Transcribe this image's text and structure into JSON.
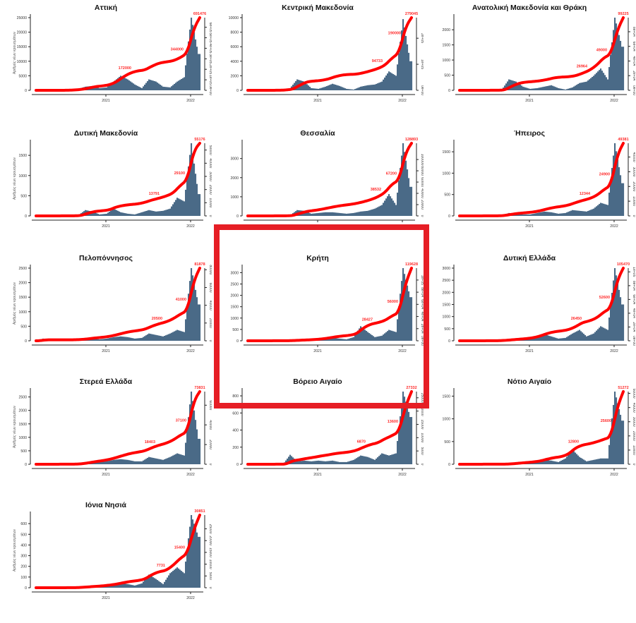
{
  "highlight_color": "#e61e25",
  "bar_color": "#4a6a87",
  "line_color": "#ff0000",
  "ylabel": "Αριθμός νέων κρουσμάτων",
  "chart_data": [
    {
      "type": "bar+line",
      "title": "Αττική",
      "x_ticks": [
        "2021",
        "2022"
      ],
      "left_ticks": [
        0,
        5000,
        10000,
        15000,
        20000,
        25000
      ],
      "left_max": 25000,
      "right_ticks": [
        "0e+00",
        "1e+05",
        "2e+05",
        "3e+05",
        "4e+05",
        "5e+05",
        "6e+05"
      ],
      "right_step": 100000,
      "final": 691476,
      "labels": [
        "172000",
        "344000",
        "691476"
      ],
      "monthly": [
        0,
        0,
        0,
        0,
        0,
        0.01,
        0.02,
        0.05,
        0.06,
        0.03,
        0.04,
        0.12,
        0.2,
        0.15,
        0.08,
        0.03,
        0.15,
        0.12,
        0.05,
        0.04,
        0.12,
        0.18,
        1,
        0.5
      ]
    },
    {
      "type": "bar+line",
      "title": "Κεντρική Μακεδονία",
      "x_ticks": [
        "2021",
        "2022"
      ],
      "left_ticks": [
        0,
        2000,
        4000,
        6000,
        8000,
        10000
      ],
      "left_max": 10000,
      "right_ticks": [
        "0e+00",
        "1e+05",
        "2e+05",
        "3e+05"
      ],
      "right_step": 100000,
      "final": 279045,
      "labels": [
        "94733",
        "190000",
        "279045"
      ],
      "monthly": [
        0,
        0,
        0,
        0,
        0,
        0.01,
        0.03,
        0.15,
        0.12,
        0.03,
        0.02,
        0.05,
        0.09,
        0.06,
        0.02,
        0.01,
        0.05,
        0.07,
        0.08,
        0.12,
        0.26,
        0.2,
        0.98,
        0.4
      ]
    },
    {
      "type": "bar+line",
      "title": "Ανατολική Μακεδονία και Θράκη",
      "x_ticks": [
        "2021",
        "2022"
      ],
      "left_ticks": [
        0,
        500,
        1000,
        1500,
        2000
      ],
      "left_max": 2400,
      "right_ticks": [
        "0e+00",
        "2e+04",
        "4e+04",
        "6e+04",
        "8e+04",
        "1e+05"
      ],
      "right_step": 20000,
      "final": 99225,
      "labels": [
        "26964",
        "49000",
        "99225"
      ],
      "monthly": [
        0,
        0,
        0,
        0,
        0,
        0,
        0.01,
        0.15,
        0.12,
        0.05,
        0.02,
        0.03,
        0.05,
        0.07,
        0.03,
        0.01,
        0.04,
        0.1,
        0.12,
        0.2,
        0.3,
        0.15,
        1,
        0.6
      ]
    },
    {
      "type": "bar+line",
      "title": "Δυτική Μακεδονία",
      "x_ticks": [
        "2021",
        "2022"
      ],
      "left_ticks": [
        0,
        500,
        1000,
        1500
      ],
      "left_max": 1800,
      "right_ticks": [
        "0",
        "10000",
        "20000",
        "30000",
        "40000",
        "50000"
      ],
      "right_step": 10000,
      "final": 55176,
      "labels": [
        "13791",
        "29100",
        "55176"
      ],
      "monthly": [
        0,
        0,
        0,
        0,
        0,
        0,
        0.01,
        0.08,
        0.06,
        0.02,
        0.03,
        0.1,
        0.05,
        0.03,
        0.02,
        0.05,
        0.08,
        0.06,
        0.07,
        0.1,
        0.25,
        0.2,
        1,
        0.3
      ]
    },
    {
      "type": "bar+line",
      "title": "Θεσσαλία",
      "x_ticks": [
        "2021",
        "2022"
      ],
      "left_ticks": [
        0,
        1000,
        2000,
        3000
      ],
      "left_max": 3800,
      "right_ticks": [
        "0",
        "20000",
        "40000",
        "60000",
        "80000",
        "100000"
      ],
      "right_step": 20000,
      "final": 128893,
      "labels": [
        "38532",
        "67200",
        "128893"
      ],
      "monthly": [
        0,
        0,
        0,
        0,
        0,
        0,
        0.01,
        0.08,
        0.07,
        0.03,
        0.04,
        0.05,
        0.05,
        0.04,
        0.03,
        0.04,
        0.06,
        0.07,
        0.1,
        0.15,
        0.3,
        0.15,
        1,
        0.4
      ]
    },
    {
      "type": "bar+line",
      "title": "Ήπειρος",
      "x_ticks": [
        "2021",
        "2022"
      ],
      "left_ticks": [
        0,
        500,
        1000,
        1500
      ],
      "left_max": 1700,
      "right_ticks": [
        "0",
        "10000",
        "20000",
        "30000",
        "40000",
        "50000"
      ],
      "right_step": 10000,
      "final": 49381,
      "labels": [
        "12344",
        "24900",
        "49381"
      ],
      "monthly": [
        0,
        0,
        0,
        0,
        0,
        0,
        0.01,
        0.04,
        0.03,
        0.02,
        0.02,
        0.04,
        0.06,
        0.05,
        0.03,
        0.04,
        0.08,
        0.07,
        0.06,
        0.1,
        0.18,
        0.15,
        1,
        0.45
      ]
    },
    {
      "type": "bar+line",
      "title": "Πελοπόννησος",
      "x_ticks": [
        "2021",
        "2022"
      ],
      "left_ticks": [
        0,
        500,
        1000,
        1500,
        2000,
        2500
      ],
      "left_max": 2500,
      "right_ticks": [
        "0",
        "20000",
        "40000",
        "60000",
        "80000"
      ],
      "right_step": 20000,
      "final": 81878,
      "labels": [
        "20500",
        "41000",
        "81878"
      ],
      "monthly": [
        0,
        0.03,
        0,
        0,
        0,
        0,
        0.01,
        0.02,
        0.03,
        0.02,
        0.03,
        0.05,
        0.06,
        0.05,
        0.03,
        0.04,
        0.1,
        0.08,
        0.06,
        0.1,
        0.15,
        0.12,
        1,
        0.5
      ]
    },
    {
      "type": "bar+line",
      "title": "Κρήτη",
      "x_ticks": [
        "2021",
        "2022"
      ],
      "left_ticks": [
        0,
        500,
        1000,
        1500,
        2000,
        2500,
        3000
      ],
      "left_max": 3200,
      "right_ticks": [
        "0e+00",
        "2e+04",
        "4e+04",
        "6e+04",
        "8e+04",
        "1e+05"
      ],
      "right_step": 20000,
      "final": 119628,
      "labels": [
        "28427",
        "56000",
        "119628"
      ],
      "monthly": [
        0,
        0,
        0,
        0,
        0,
        0,
        0.005,
        0.01,
        0.01,
        0.01,
        0.02,
        0.03,
        0.04,
        0.03,
        0.02,
        0.05,
        0.2,
        0.12,
        0.05,
        0.07,
        0.15,
        0.12,
        1,
        0.6
      ]
    },
    {
      "type": "bar+line",
      "title": "Δυτική Ελλάδα",
      "x_ticks": [
        "2021",
        "2022"
      ],
      "left_ticks": [
        0,
        500,
        1000,
        1500,
        2000,
        2500,
        3000
      ],
      "left_max": 3000,
      "right_ticks": [
        "0e+00",
        "2e+04",
        "4e+04",
        "6e+04",
        "8e+04",
        "1e+05"
      ],
      "right_step": 20000,
      "final": 105470,
      "labels": [
        "26450",
        "52600",
        "105470"
      ],
      "monthly": [
        0,
        0,
        0,
        0,
        0,
        0,
        0.01,
        0.02,
        0.02,
        0.02,
        0.03,
        0.06,
        0.09,
        0.06,
        0.03,
        0.04,
        0.1,
        0.15,
        0.06,
        0.1,
        0.2,
        0.15,
        1,
        0.5
      ]
    },
    {
      "type": "bar+line",
      "title": "Στερεά Ελλάδα",
      "x_ticks": [
        "2021",
        "2022"
      ],
      "left_ticks": [
        0,
        500,
        1000,
        1500,
        2000,
        2500
      ],
      "left_max": 2700,
      "right_ticks": [
        "0",
        "20000",
        "40000",
        "60000"
      ],
      "right_step": 20000,
      "final": 73831,
      "labels": [
        "18403",
        "37100",
        "73831"
      ],
      "monthly": [
        0,
        0,
        0,
        0,
        0,
        0,
        0.01,
        0.03,
        0.04,
        0.03,
        0.04,
        0.06,
        0.07,
        0.06,
        0.04,
        0.04,
        0.1,
        0.08,
        0.06,
        0.1,
        0.15,
        0.12,
        1,
        0.35
      ]
    },
    {
      "type": "bar+line",
      "title": "Βόρειο Αιγαίο",
      "x_ticks": [
        "2021",
        "2022"
      ],
      "left_ticks": [
        0,
        200,
        400,
        600,
        800
      ],
      "left_max": 850,
      "right_ticks": [
        "0",
        "5000",
        "10000",
        "15000",
        "20000",
        "25000"
      ],
      "right_step": 5000,
      "final": 27332,
      "labels": [
        "6870",
        "13600",
        "27332"
      ],
      "monthly": [
        0,
        0,
        0,
        0,
        0,
        0,
        0.13,
        0.04,
        0.05,
        0.04,
        0.05,
        0.04,
        0.05,
        0.03,
        0.03,
        0.06,
        0.12,
        0.1,
        0.06,
        0.15,
        0.12,
        0.15,
        1,
        0.65
      ]
    },
    {
      "type": "bar+line",
      "title": "Νότιο Αιγαίο",
      "x_ticks": [
        "2021",
        "2022"
      ],
      "left_ticks": [
        0,
        500,
        1000,
        1500
      ],
      "left_max": 1600,
      "right_ticks": [
        "0",
        "10000",
        "20000",
        "30000",
        "40000",
        "50000"
      ],
      "right_step": 10000,
      "final": 51272,
      "labels": [
        "12800",
        "25600",
        "51272"
      ],
      "monthly": [
        0,
        0,
        0,
        0,
        0,
        0,
        0,
        0.01,
        0.02,
        0.02,
        0.02,
        0.03,
        0.06,
        0.05,
        0.03,
        0.08,
        0.2,
        0.1,
        0.04,
        0.06,
        0.08,
        0.08,
        1,
        0.6
      ]
    },
    {
      "type": "bar+line",
      "title": "Ιόνια Νησιά",
      "x_ticks": [
        "2021",
        "2022"
      ],
      "left_ticks": [
        0,
        100,
        200,
        300,
        400,
        500,
        600
      ],
      "left_max": 680,
      "right_ticks": [
        "0",
        "5000",
        "10000",
        "15000",
        "20000",
        "25000"
      ],
      "right_step": 5000,
      "final": 30851,
      "labels": [
        "7731",
        "15400",
        "30851"
      ],
      "monthly": [
        0,
        0,
        0,
        0,
        0,
        0,
        0.01,
        0.02,
        0.02,
        0.02,
        0.03,
        0.04,
        0.06,
        0.05,
        0.03,
        0.06,
        0.18,
        0.12,
        0.05,
        0.2,
        0.28,
        0.2,
        1,
        0.7
      ]
    }
  ]
}
